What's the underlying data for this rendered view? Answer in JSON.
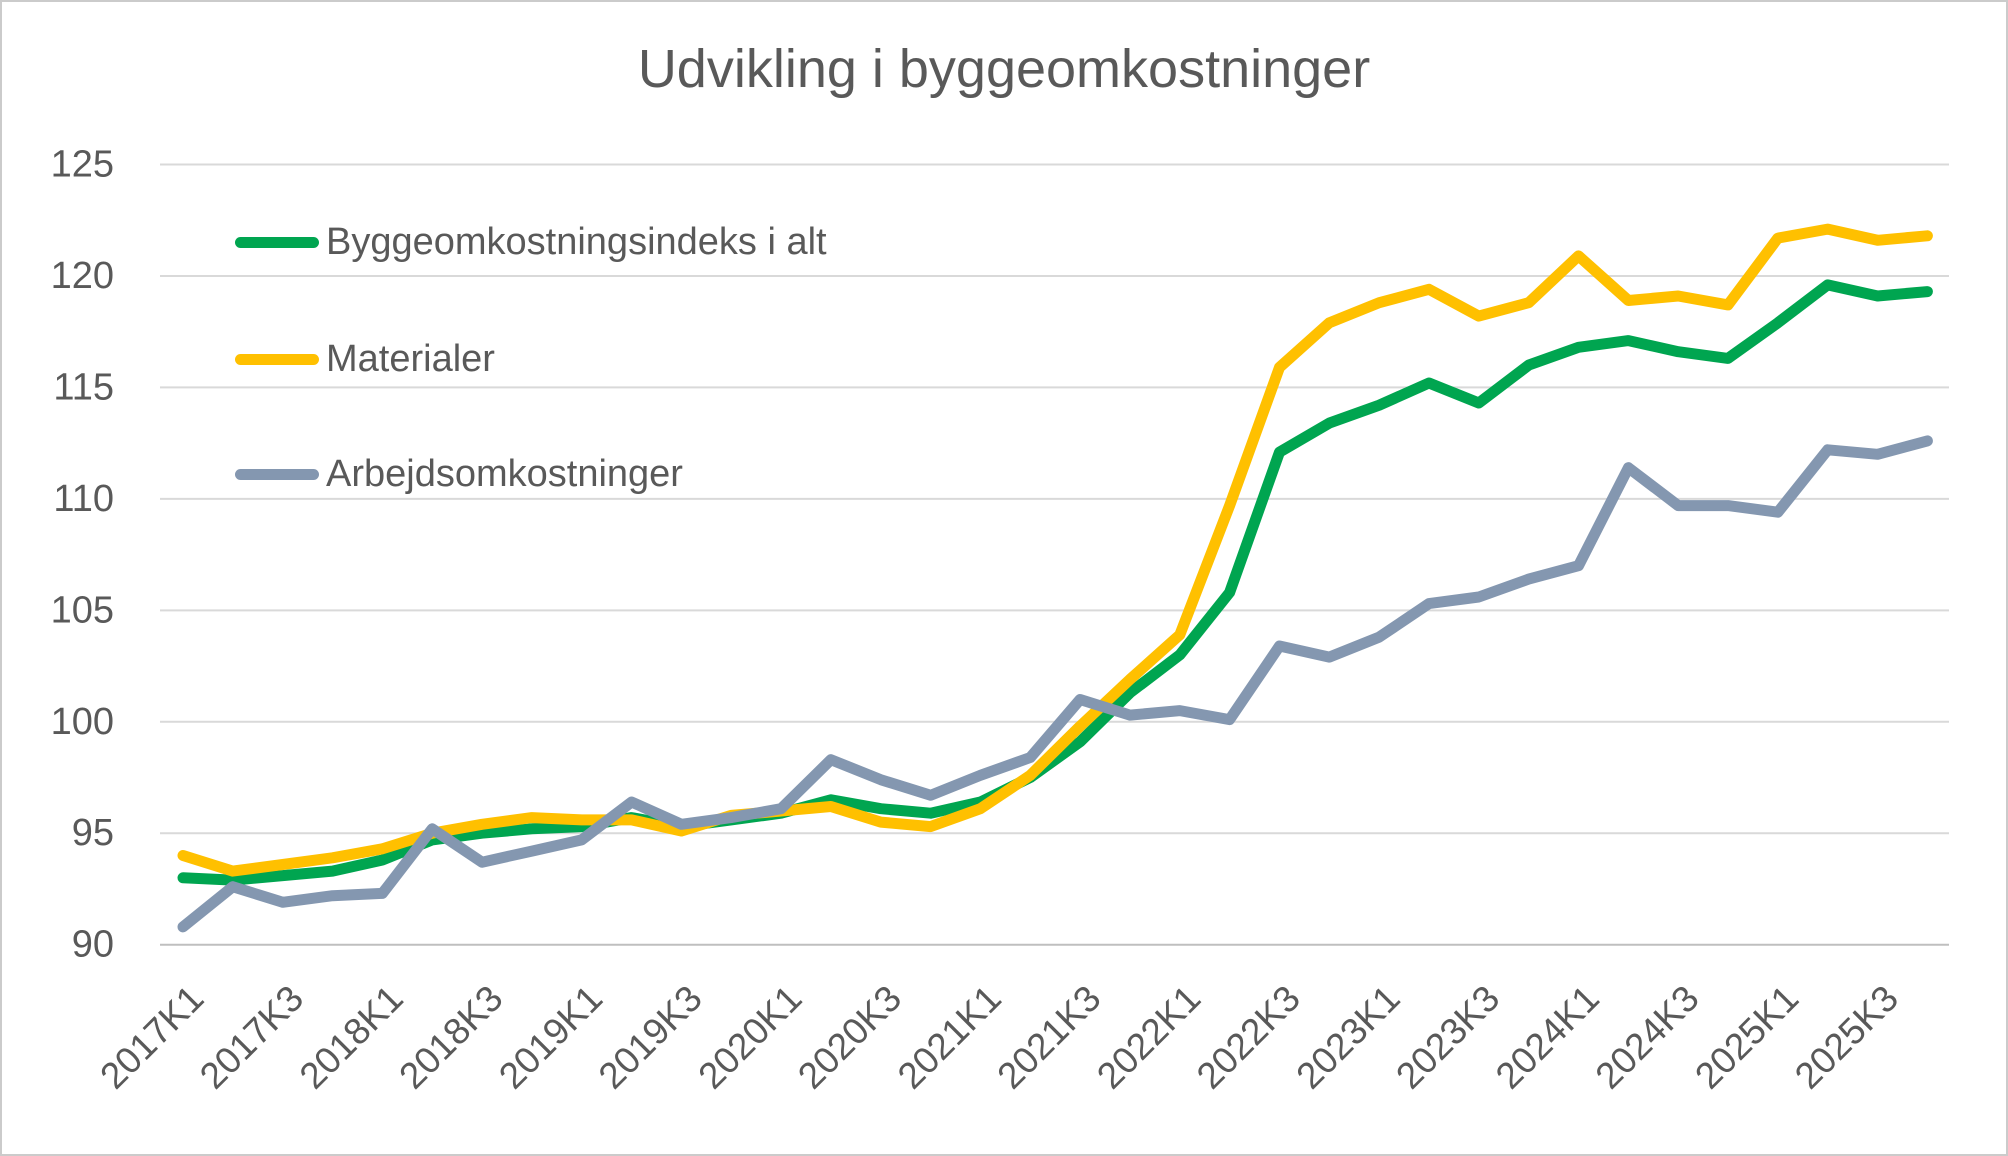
{
  "chart_data": {
    "type": "line",
    "title": "Udvikling i byggeomkostninger",
    "categories": [
      "2017K1",
      "2017K2",
      "2017K3",
      "2017K4",
      "2018K1",
      "2018K2",
      "2018K3",
      "2018K4",
      "2019K1",
      "2019K2",
      "2019K3",
      "2019K4",
      "2020K1",
      "2020K2",
      "2020K3",
      "2020K4",
      "2021K1",
      "2021K2",
      "2021K3",
      "2021K4",
      "2022K1",
      "2022K2",
      "2022K3",
      "2022K4",
      "2023K1",
      "2023K2",
      "2023K3",
      "2023K4",
      "2024K1",
      "2024K2",
      "2024K3",
      "2024K4",
      "2025K1",
      "2025K2",
      "2025K3",
      "2025K4"
    ],
    "x_tick_labels": [
      "2017K1",
      "2017K3",
      "2018K1",
      "2018K3",
      "2019K1",
      "2019K3",
      "2020K1",
      "2020K3",
      "2021K1",
      "2021K3",
      "2022K1",
      "2022K3",
      "2023K1",
      "2023K3",
      "2024K1",
      "2024K3",
      "2025K1",
      "2025K3"
    ],
    "y_ticks": [
      90,
      95,
      100,
      105,
      110,
      115,
      120,
      125
    ],
    "ylim": [
      90,
      125
    ],
    "grid": "horizontal",
    "legend_position": "upper-left-inside",
    "series": [
      {
        "name": "Byggeomkostningsindeks i alt",
        "color": "#00A550",
        "values": [
          93.0,
          92.9,
          93.1,
          93.3,
          93.8,
          94.7,
          95.0,
          95.2,
          95.3,
          95.7,
          95.3,
          95.6,
          95.9,
          96.5,
          96.1,
          95.9,
          96.4,
          97.5,
          99.1,
          101.3,
          103.0,
          105.8,
          112.1,
          113.4,
          114.2,
          115.2,
          114.3,
          116.0,
          116.8,
          117.1,
          116.6,
          116.3,
          117.9,
          119.6,
          119.1,
          119.3
        ]
      },
      {
        "name": "Materialer",
        "color": "#FFC000",
        "values": [
          94.0,
          93.3,
          93.6,
          93.9,
          94.3,
          95.0,
          95.4,
          95.7,
          95.6,
          95.6,
          95.1,
          95.8,
          96.0,
          96.2,
          95.5,
          95.3,
          96.1,
          97.6,
          99.8,
          101.9,
          103.9,
          109.7,
          115.9,
          117.9,
          118.8,
          119.4,
          118.2,
          118.8,
          120.9,
          118.9,
          119.1,
          118.7,
          121.7,
          122.1,
          121.6,
          121.8
        ]
      },
      {
        "name": "Arbejdsomkostninger",
        "color": "#8497B0",
        "values": [
          90.8,
          92.6,
          91.9,
          92.2,
          92.3,
          95.2,
          93.7,
          94.2,
          94.7,
          96.4,
          95.4,
          95.7,
          96.1,
          98.3,
          97.4,
          96.7,
          97.6,
          98.4,
          101.0,
          100.3,
          100.5,
          100.1,
          103.4,
          102.9,
          103.8,
          105.3,
          105.6,
          106.4,
          107.0,
          111.4,
          109.7,
          109.7,
          109.4,
          112.2,
          112.0,
          112.6
        ]
      }
    ],
    "colors": {
      "text": "#595959",
      "gridline": "#D9D9D9",
      "axis_line": "#BFBFBF",
      "background": "#FFFFFF"
    }
  }
}
